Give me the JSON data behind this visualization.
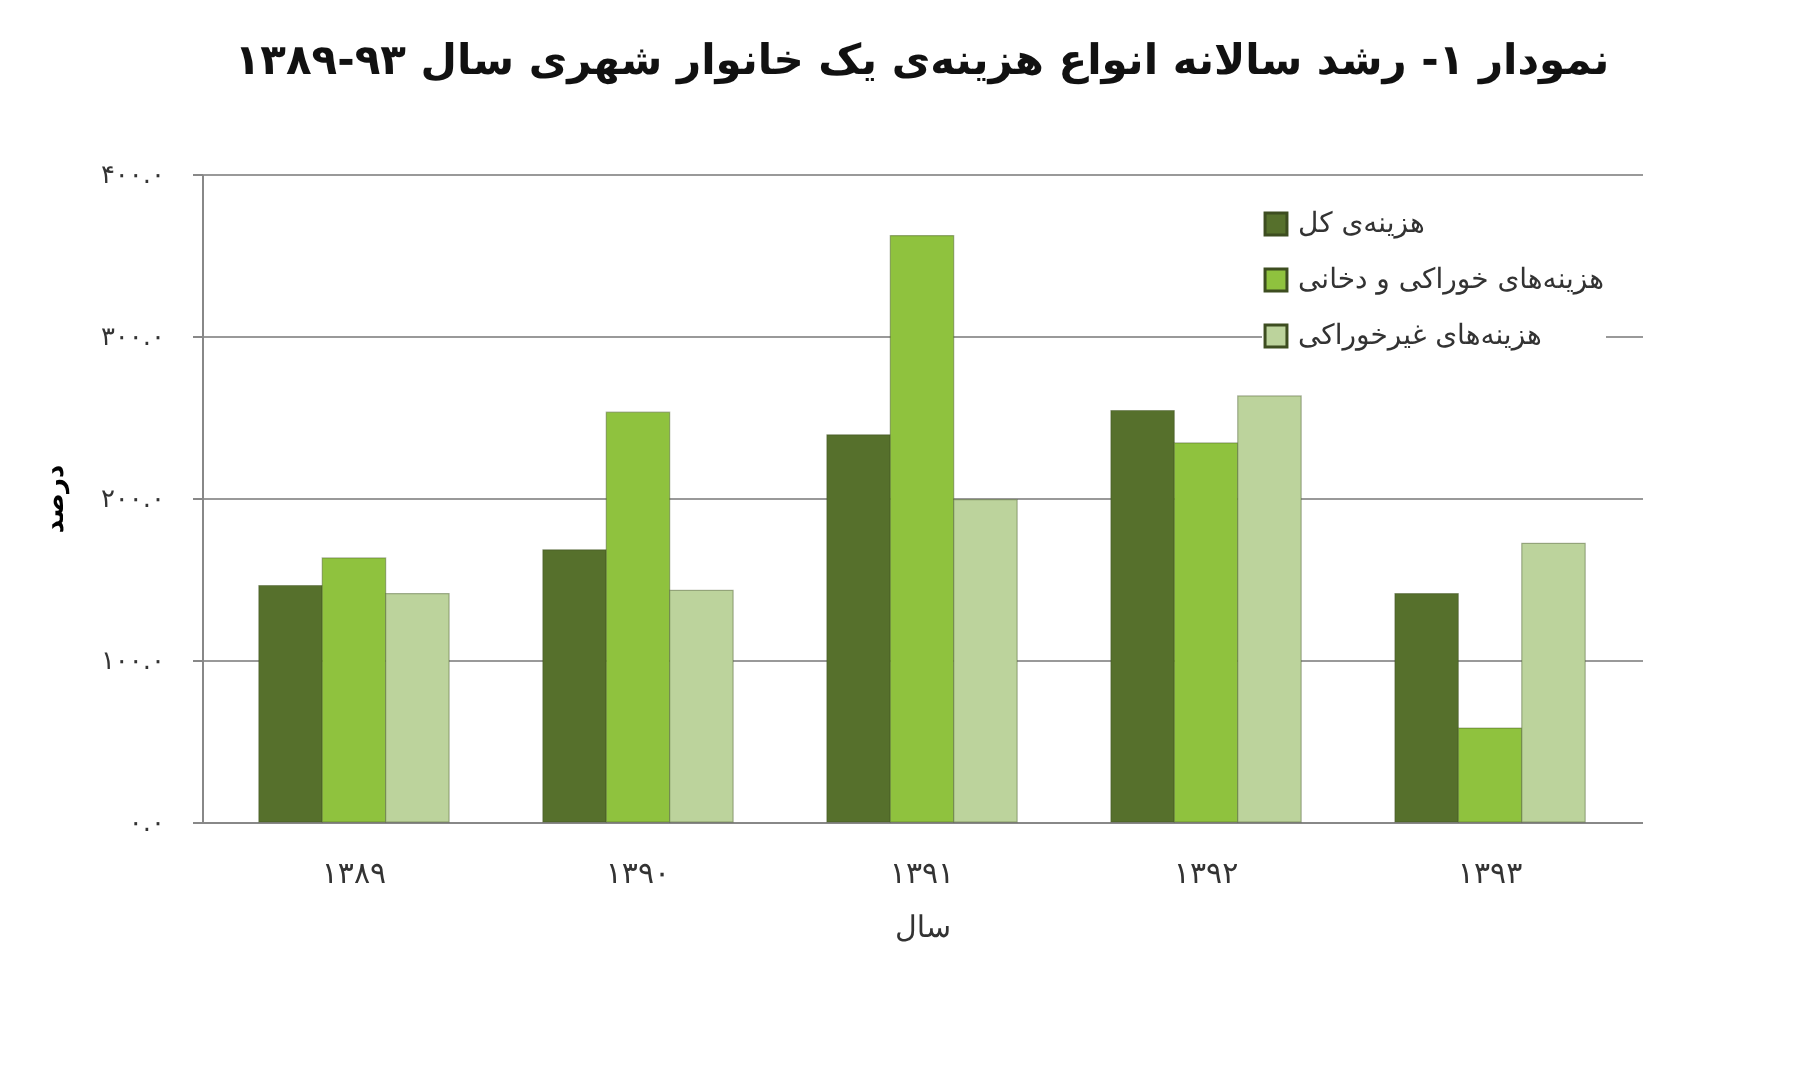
{
  "chart_data": {
    "type": "bar",
    "title": "نمودار ۱- رشد سالانه انواع هزینه‌ی یک خانوار شهری سال ۹۳-۱۳۸۹",
    "xlabel": "سال",
    "ylabel": "درصد",
    "categories": [
      "۱۳۸۹",
      "۱۳۹۰",
      "۱۳۹۱",
      "۱۳۹۲",
      "۱۳۹۳"
    ],
    "series": [
      {
        "name": "هزینه‌ی کل",
        "color": "#56702c",
        "values": [
          146,
          168,
          239,
          254,
          141
        ]
      },
      {
        "name": "هزینه‌های خوراکی و دخانی",
        "color": "#8fc23e",
        "values": [
          163,
          253,
          362,
          234,
          58
        ]
      },
      {
        "name": "هزینه‌های غیرخوراکی",
        "color": "#bcd39c",
        "values": [
          141,
          143,
          199,
          263,
          172
        ]
      }
    ],
    "ylim": [
      0,
      400
    ],
    "yticks": [
      {
        "value": 0,
        "label": "۰.۰"
      },
      {
        "value": 100,
        "label": "۱۰۰.۰"
      },
      {
        "value": 200,
        "label": "۲۰۰.۰"
      },
      {
        "value": 300,
        "label": "۳۰۰.۰"
      },
      {
        "value": 400,
        "label": "۴۰۰.۰"
      }
    ],
    "grid": "y",
    "legend": "top right"
  }
}
